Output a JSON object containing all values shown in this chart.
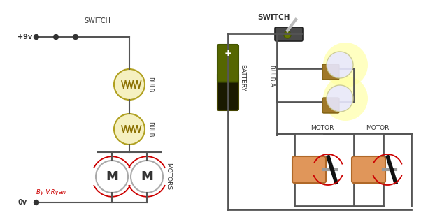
{
  "bg_color": "#ffffff",
  "wire_color": "#555555",
  "red_arrow": "#cc0000",
  "switch_label": "SWITCH",
  "bulb_label": "BULB",
  "motors_label": "MOTORS",
  "motor_label": "MOTOR",
  "battery_label": "BATTERY",
  "bulb_a_label": "BULB A",
  "voltage_pos": "+9v",
  "voltage_neg": "0v",
  "by_text": "By V.Ryan",
  "by_color": "#cc0000"
}
